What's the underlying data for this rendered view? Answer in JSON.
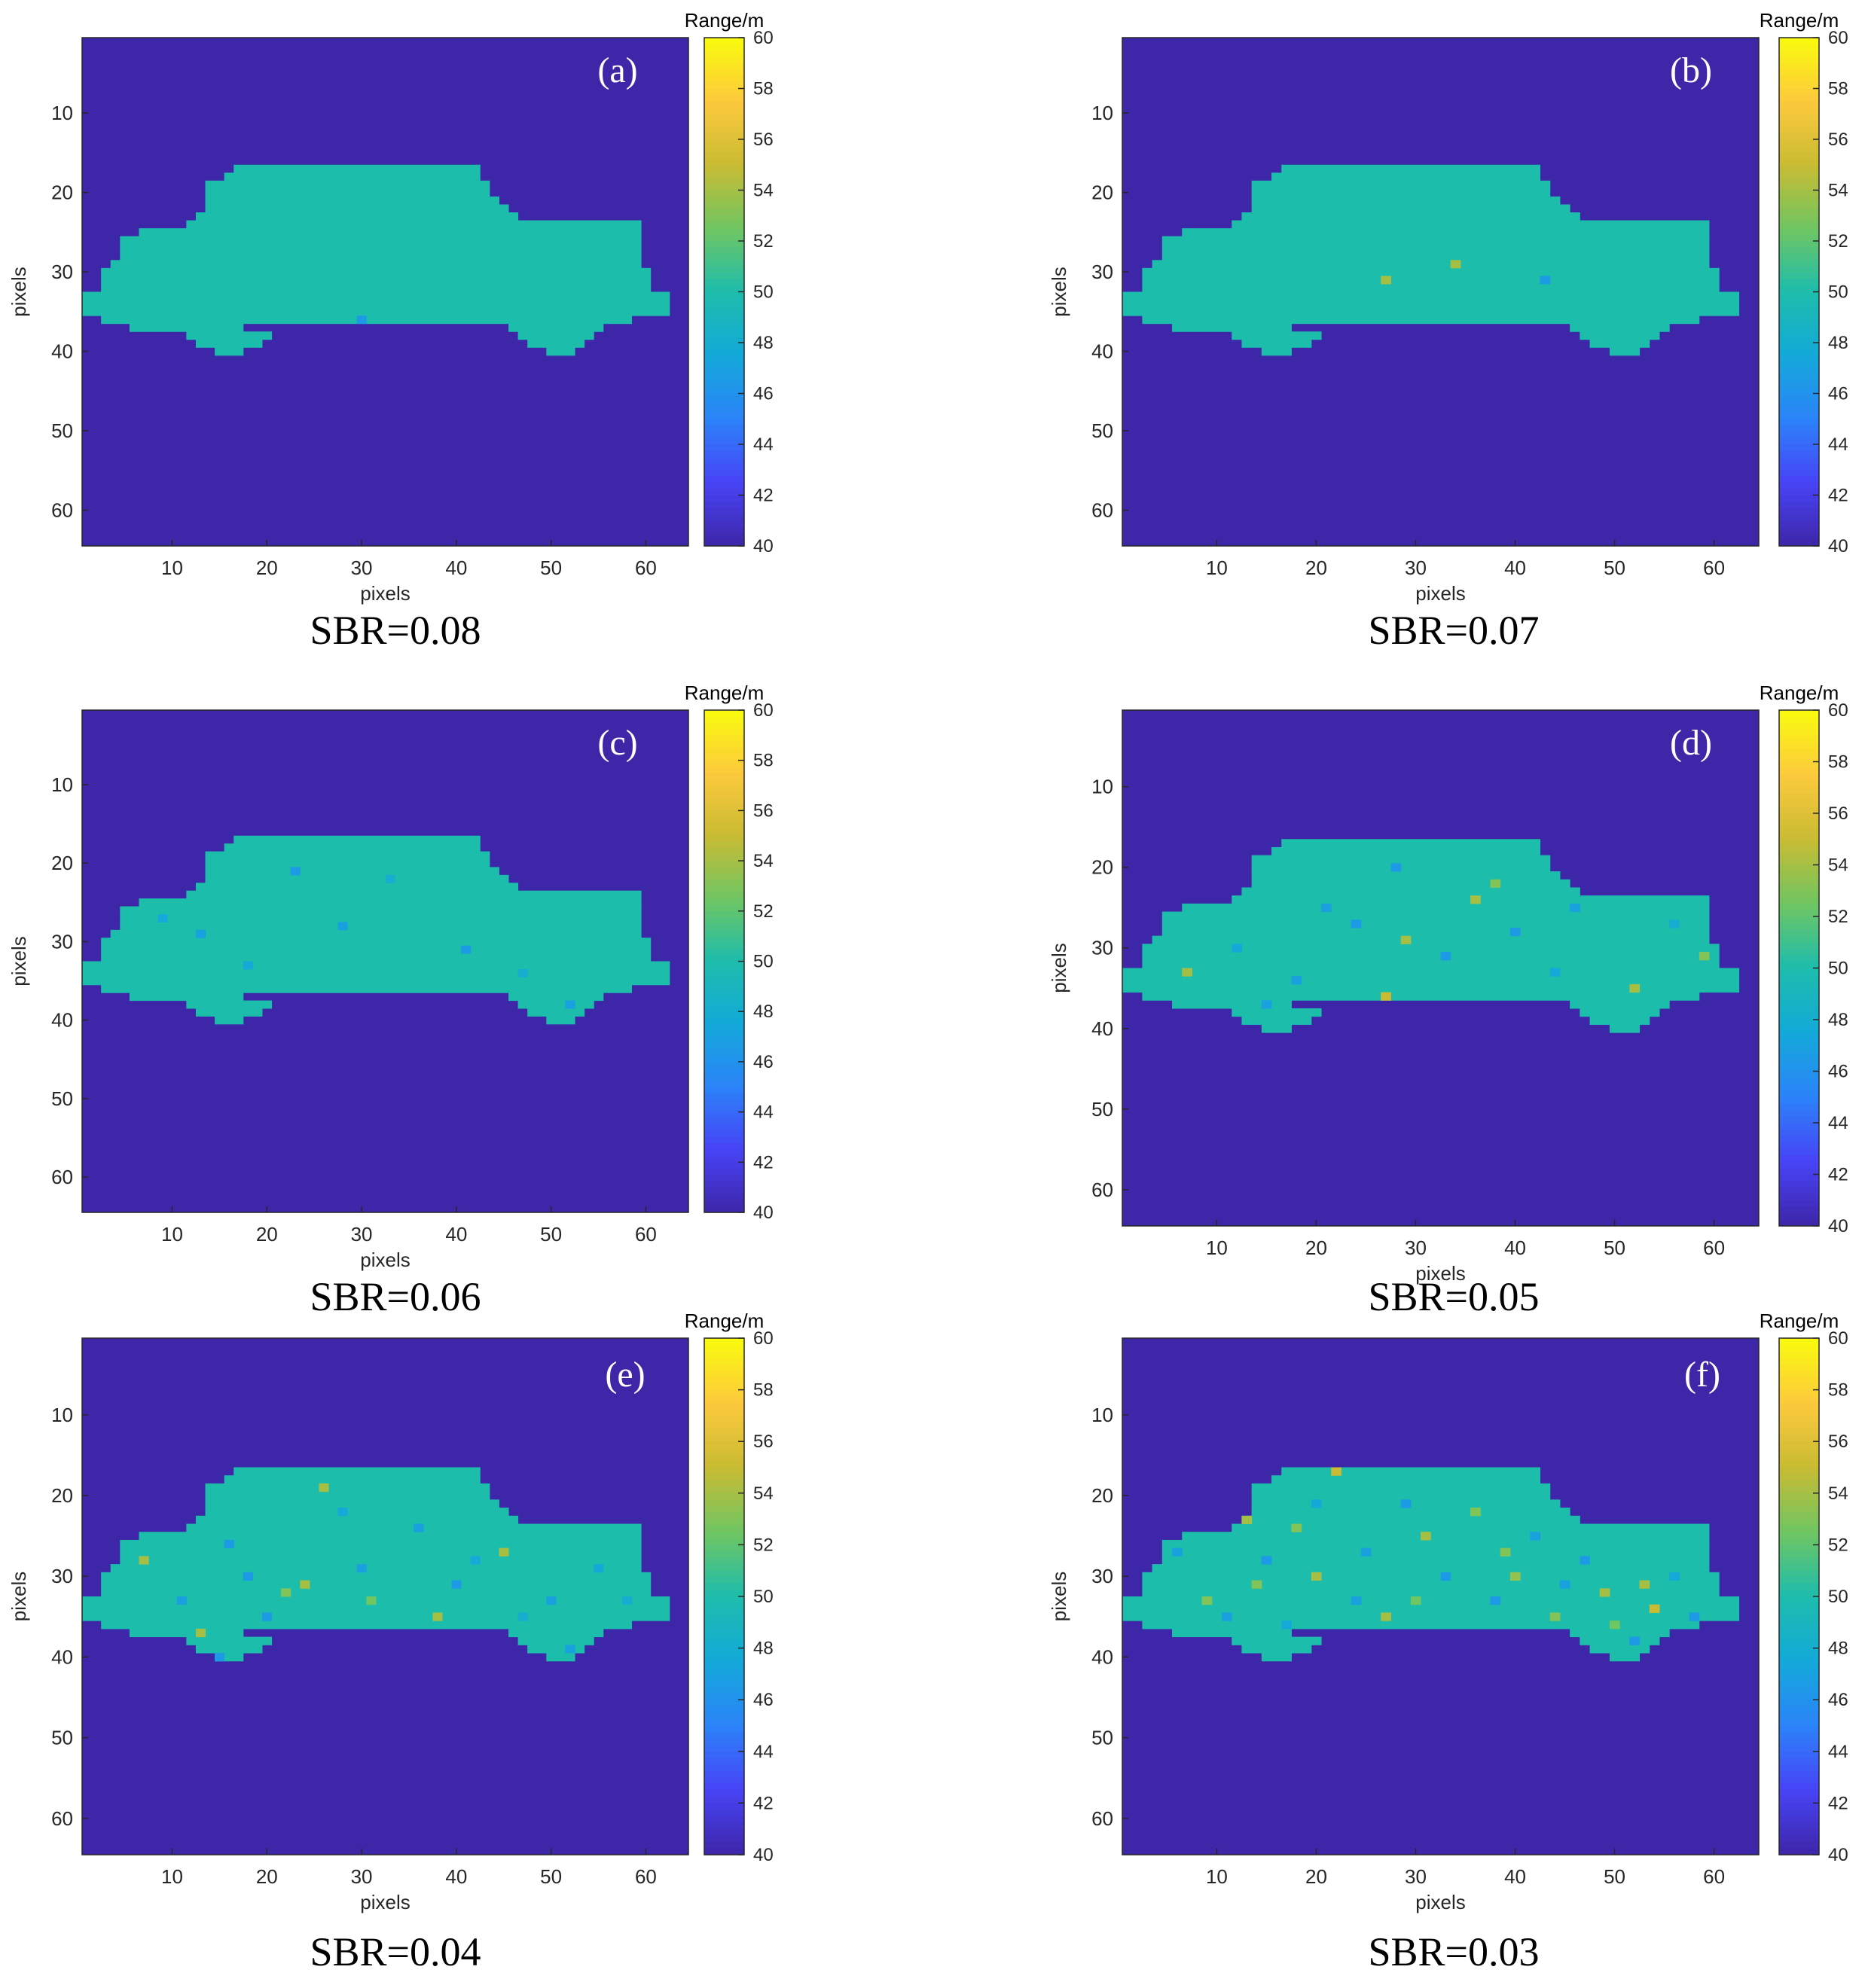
{
  "colormap": {
    "name": "parula",
    "stops": [
      "#3e26a8",
      "#4743f6",
      "#2b83f9",
      "#14a9d9",
      "#1dbdac",
      "#70c661",
      "#c9bb33",
      "#fdc93c",
      "#f9fb0e"
    ]
  },
  "chart_data": [
    {
      "type": "heatmap",
      "panel_label": "(a)",
      "caption": "SBR=0.08",
      "xlabel": "pixels",
      "ylabel": "pixels",
      "xlim": [
        0.5,
        64.5
      ],
      "ylim": [
        0.5,
        64.5
      ],
      "x_ticks": [
        10,
        20,
        30,
        40,
        50,
        60
      ],
      "y_ticks": [
        10,
        20,
        30,
        40,
        50,
        60
      ],
      "colorbar_title": "Range/m",
      "clim": [
        40,
        60
      ],
      "colorbar_ticks": [
        40,
        42,
        44,
        46,
        48,
        50,
        52,
        54,
        56,
        58,
        60
      ],
      "background_range": 40,
      "target_range": 50,
      "target_shape": "car",
      "outliers": [
        [
          30,
          36,
          46.5
        ]
      ]
    },
    {
      "type": "heatmap",
      "panel_label": "(b)",
      "caption": "SBR=0.07",
      "xlabel": "pixels",
      "ylabel": "pixels",
      "xlim": [
        0.5,
        64.5
      ],
      "ylim": [
        0.5,
        64.5
      ],
      "x_ticks": [
        10,
        20,
        30,
        40,
        50,
        60
      ],
      "y_ticks": [
        10,
        20,
        30,
        40,
        50,
        60
      ],
      "colorbar_title": "Range/m",
      "clim": [
        40,
        60
      ],
      "colorbar_ticks": [
        40,
        42,
        44,
        46,
        48,
        50,
        52,
        54,
        56,
        58,
        60
      ],
      "background_range": 40,
      "target_range": 50,
      "target_shape": "car",
      "outliers": [
        [
          27,
          31,
          54
        ],
        [
          34,
          29,
          54
        ],
        [
          43,
          31,
          46.5
        ]
      ]
    },
    {
      "type": "heatmap",
      "panel_label": "(c)",
      "caption": "SBR=0.06",
      "xlabel": "pixels",
      "ylabel": "pixels",
      "xlim": [
        0.5,
        64.5
      ],
      "ylim": [
        0.5,
        64.5
      ],
      "x_ticks": [
        10,
        20,
        30,
        40,
        50,
        60
      ],
      "y_ticks": [
        10,
        20,
        30,
        40,
        50,
        60
      ],
      "colorbar_title": "Range/m",
      "clim": [
        40,
        60
      ],
      "colorbar_ticks": [
        40,
        42,
        44,
        46,
        48,
        50,
        52,
        54,
        56,
        58,
        60
      ],
      "background_range": 40,
      "target_range": 50,
      "target_shape": "car",
      "outliers": [
        [
          23,
          21,
          46.5
        ],
        [
          13,
          29,
          47
        ],
        [
          28,
          28,
          47
        ],
        [
          41,
          31,
          46.5
        ],
        [
          9,
          27,
          47.5
        ],
        [
          52,
          38,
          47
        ],
        [
          33,
          22,
          48
        ],
        [
          18,
          33,
          47.5
        ],
        [
          47,
          34,
          48
        ]
      ]
    },
    {
      "type": "heatmap",
      "panel_label": "(d)",
      "caption": "SBR=0.05",
      "xlabel": "pixels",
      "ylabel": "pixels",
      "xlim": [
        0.5,
        64.5
      ],
      "ylim": [
        0.5,
        64.5
      ],
      "x_ticks": [
        10,
        20,
        30,
        40,
        50,
        60
      ],
      "y_ticks": [
        10,
        20,
        30,
        40,
        50,
        60
      ],
      "colorbar_title": "Range/m",
      "clim": [
        40,
        60
      ],
      "colorbar_ticks": [
        40,
        42,
        44,
        46,
        48,
        50,
        52,
        54,
        56,
        58,
        60
      ],
      "background_range": 40,
      "target_range": 50,
      "target_shape": "car",
      "outliers": [
        [
          28,
          20,
          46.5
        ],
        [
          36,
          24,
          54
        ],
        [
          46,
          25,
          47
        ],
        [
          24,
          27,
          46.5
        ],
        [
          29,
          29,
          54
        ],
        [
          33,
          31,
          46.5
        ],
        [
          18,
          34,
          47
        ],
        [
          7,
          33,
          54
        ],
        [
          52,
          35,
          54
        ],
        [
          12,
          30,
          47.5
        ],
        [
          40,
          28,
          46.5
        ],
        [
          56,
          27,
          48
        ],
        [
          59,
          31,
          53
        ],
        [
          27,
          36,
          55
        ],
        [
          21,
          25,
          47
        ],
        [
          44,
          33,
          47.5
        ],
        [
          15,
          37,
          47
        ],
        [
          38,
          22,
          53
        ]
      ]
    },
    {
      "type": "heatmap",
      "panel_label": "(e)",
      "caption": "SBR=0.04",
      "xlabel": "pixels",
      "ylabel": "pixels",
      "xlim": [
        0.5,
        64.5
      ],
      "ylim": [
        0.5,
        64.5
      ],
      "x_ticks": [
        10,
        20,
        30,
        40,
        50,
        60
      ],
      "y_ticks": [
        10,
        20,
        30,
        40,
        50,
        60
      ],
      "colorbar_title": "Range/m",
      "clim": [
        40,
        60
      ],
      "colorbar_ticks": [
        40,
        42,
        44,
        46,
        48,
        50,
        52,
        54,
        56,
        58,
        60
      ],
      "background_range": 40,
      "target_range": 50,
      "target_shape": "car",
      "outliers": [
        [
          26,
          19,
          54
        ],
        [
          7,
          28,
          54
        ],
        [
          24,
          31,
          54
        ],
        [
          22,
          32,
          53
        ],
        [
          45,
          27,
          54
        ],
        [
          38,
          35,
          54
        ],
        [
          13,
          37,
          54
        ],
        [
          36,
          24,
          47
        ],
        [
          16,
          26,
          46.5
        ],
        [
          30,
          29,
          47
        ],
        [
          40,
          31,
          46.5
        ],
        [
          50,
          33,
          47
        ],
        [
          20,
          35,
          46.5
        ],
        [
          11,
          33,
          47
        ],
        [
          55,
          29,
          47.5
        ],
        [
          33,
          37,
          47
        ],
        [
          28,
          22,
          47.5
        ],
        [
          47,
          35,
          48
        ],
        [
          18,
          30,
          46.5
        ],
        [
          42,
          28,
          47.5
        ],
        [
          58,
          33,
          48
        ],
        [
          15,
          40,
          46.5
        ],
        [
          52,
          39,
          47
        ],
        [
          31,
          33,
          52.5
        ]
      ]
    },
    {
      "type": "heatmap",
      "panel_label": "(f)",
      "caption": "SBR=0.03",
      "xlabel": "pixels",
      "ylabel": "pixels",
      "xlim": [
        0.5,
        64.5
      ],
      "ylim": [
        0.5,
        64.5
      ],
      "x_ticks": [
        10,
        20,
        30,
        40,
        50,
        60
      ],
      "y_ticks": [
        10,
        20,
        30,
        40,
        50,
        60
      ],
      "colorbar_title": "Range/m",
      "clim": [
        40,
        60
      ],
      "colorbar_ticks": [
        40,
        42,
        44,
        46,
        48,
        50,
        52,
        54,
        56,
        58,
        60
      ],
      "background_range": 40,
      "target_range": 50,
      "target_shape": "car",
      "outliers": [
        [
          22,
          17,
          55
        ],
        [
          13,
          23,
          54
        ],
        [
          18,
          24,
          53
        ],
        [
          31,
          25,
          54
        ],
        [
          39,
          27,
          53
        ],
        [
          53,
          31,
          54
        ],
        [
          54,
          34,
          55
        ],
        [
          9,
          33,
          53
        ],
        [
          27,
          35,
          54
        ],
        [
          44,
          35,
          53
        ],
        [
          20,
          30,
          54
        ],
        [
          49,
          32,
          54
        ],
        [
          36,
          22,
          53
        ],
        [
          15,
          28,
          46.5
        ],
        [
          25,
          27,
          47
        ],
        [
          33,
          30,
          46.5
        ],
        [
          42,
          25,
          47
        ],
        [
          47,
          28,
          46.5
        ],
        [
          11,
          35,
          47
        ],
        [
          38,
          33,
          46.5
        ],
        [
          56,
          30,
          47.5
        ],
        [
          6,
          27,
          47
        ],
        [
          29,
          21,
          46.5
        ],
        [
          17,
          36,
          47.5
        ],
        [
          52,
          38,
          46.5
        ],
        [
          24,
          33,
          47
        ],
        [
          35,
          37,
          47.5
        ],
        [
          45,
          31,
          47
        ],
        [
          58,
          35,
          46.5
        ],
        [
          20,
          21,
          47.5
        ],
        [
          40,
          30,
          53.5
        ],
        [
          30,
          33,
          52.5
        ],
        [
          14,
          31,
          53
        ],
        [
          50,
          36,
          52.5
        ]
      ]
    }
  ]
}
